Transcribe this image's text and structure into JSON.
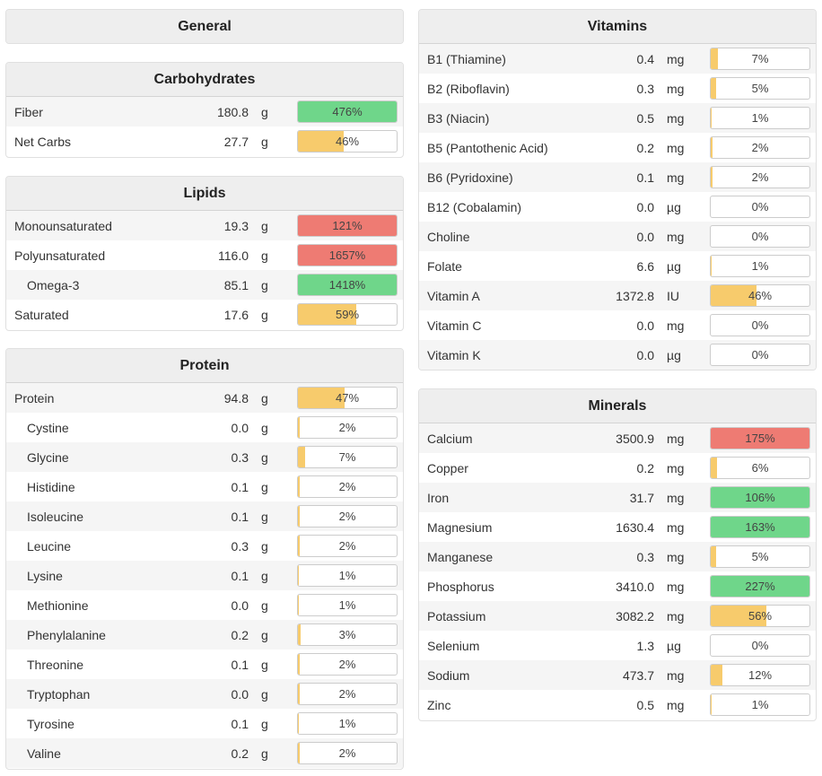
{
  "general": {
    "title": "General"
  },
  "carbohydrates": {
    "title": "Carbohydrates",
    "rows": [
      {
        "name": "Fiber",
        "amount": "180.8",
        "unit": "g",
        "percent": "476%",
        "fill": 100,
        "color": "green"
      },
      {
        "name": "Net Carbs",
        "amount": "27.7",
        "unit": "g",
        "percent": "46%",
        "fill": 46,
        "color": "yellow"
      }
    ]
  },
  "lipids": {
    "title": "Lipids",
    "rows": [
      {
        "name": "Monounsaturated",
        "amount": "19.3",
        "unit": "g",
        "percent": "121%",
        "fill": 100,
        "color": "red"
      },
      {
        "name": "Polyunsaturated",
        "amount": "116.0",
        "unit": "g",
        "percent": "1657%",
        "fill": 100,
        "color": "red"
      },
      {
        "name": "Omega-3",
        "amount": "85.1",
        "unit": "g",
        "percent": "1418%",
        "fill": 100,
        "color": "green",
        "sub": true
      },
      {
        "name": "Saturated",
        "amount": "17.6",
        "unit": "g",
        "percent": "59%",
        "fill": 59,
        "color": "yellow"
      }
    ]
  },
  "protein": {
    "title": "Protein",
    "rows": [
      {
        "name": "Protein",
        "amount": "94.8",
        "unit": "g",
        "percent": "47%",
        "fill": 47,
        "color": "yellow"
      },
      {
        "name": "Cystine",
        "amount": "0.0",
        "unit": "g",
        "percent": "2%",
        "fill": 2,
        "color": "yellow",
        "sub": true
      },
      {
        "name": "Glycine",
        "amount": "0.3",
        "unit": "g",
        "percent": "7%",
        "fill": 7,
        "color": "yellow",
        "sub": true
      },
      {
        "name": "Histidine",
        "amount": "0.1",
        "unit": "g",
        "percent": "2%",
        "fill": 2,
        "color": "yellow",
        "sub": true
      },
      {
        "name": "Isoleucine",
        "amount": "0.1",
        "unit": "g",
        "percent": "2%",
        "fill": 2,
        "color": "yellow",
        "sub": true
      },
      {
        "name": "Leucine",
        "amount": "0.3",
        "unit": "g",
        "percent": "2%",
        "fill": 2,
        "color": "yellow",
        "sub": true
      },
      {
        "name": "Lysine",
        "amount": "0.1",
        "unit": "g",
        "percent": "1%",
        "fill": 1,
        "color": "yellow",
        "sub": true
      },
      {
        "name": "Methionine",
        "amount": "0.0",
        "unit": "g",
        "percent": "1%",
        "fill": 1,
        "color": "yellow",
        "sub": true
      },
      {
        "name": "Phenylalanine",
        "amount": "0.2",
        "unit": "g",
        "percent": "3%",
        "fill": 3,
        "color": "yellow",
        "sub": true
      },
      {
        "name": "Threonine",
        "amount": "0.1",
        "unit": "g",
        "percent": "2%",
        "fill": 2,
        "color": "yellow",
        "sub": true
      },
      {
        "name": "Tryptophan",
        "amount": "0.0",
        "unit": "g",
        "percent": "2%",
        "fill": 2,
        "color": "yellow",
        "sub": true
      },
      {
        "name": "Tyrosine",
        "amount": "0.1",
        "unit": "g",
        "percent": "1%",
        "fill": 1,
        "color": "yellow",
        "sub": true
      },
      {
        "name": "Valine",
        "amount": "0.2",
        "unit": "g",
        "percent": "2%",
        "fill": 2,
        "color": "yellow",
        "sub": true
      }
    ]
  },
  "vitamins": {
    "title": "Vitamins",
    "rows": [
      {
        "name": "B1 (Thiamine)",
        "amount": "0.4",
        "unit": "mg",
        "percent": "7%",
        "fill": 7,
        "color": "yellow"
      },
      {
        "name": "B2 (Riboflavin)",
        "amount": "0.3",
        "unit": "mg",
        "percent": "5%",
        "fill": 5,
        "color": "yellow"
      },
      {
        "name": "B3 (Niacin)",
        "amount": "0.5",
        "unit": "mg",
        "percent": "1%",
        "fill": 1,
        "color": "yellow"
      },
      {
        "name": "B5 (Pantothenic Acid)",
        "amount": "0.2",
        "unit": "mg",
        "percent": "2%",
        "fill": 2,
        "color": "yellow"
      },
      {
        "name": "B6 (Pyridoxine)",
        "amount": "0.1",
        "unit": "mg",
        "percent": "2%",
        "fill": 2,
        "color": "yellow"
      },
      {
        "name": "B12 (Cobalamin)",
        "amount": "0.0",
        "unit": "µg",
        "percent": "0%",
        "fill": 0,
        "color": "yellow"
      },
      {
        "name": "Choline",
        "amount": "0.0",
        "unit": "mg",
        "percent": "0%",
        "fill": 0,
        "color": "yellow"
      },
      {
        "name": "Folate",
        "amount": "6.6",
        "unit": "µg",
        "percent": "1%",
        "fill": 1,
        "color": "yellow"
      },
      {
        "name": "Vitamin A",
        "amount": "1372.8",
        "unit": "IU",
        "percent": "46%",
        "fill": 46,
        "color": "yellow"
      },
      {
        "name": "Vitamin C",
        "amount": "0.0",
        "unit": "mg",
        "percent": "0%",
        "fill": 0,
        "color": "yellow"
      },
      {
        "name": "Vitamin K",
        "amount": "0.0",
        "unit": "µg",
        "percent": "0%",
        "fill": 0,
        "color": "yellow"
      }
    ]
  },
  "minerals": {
    "title": "Minerals",
    "rows": [
      {
        "name": "Calcium",
        "amount": "3500.9",
        "unit": "mg",
        "percent": "175%",
        "fill": 100,
        "color": "red"
      },
      {
        "name": "Copper",
        "amount": "0.2",
        "unit": "mg",
        "percent": "6%",
        "fill": 6,
        "color": "yellow"
      },
      {
        "name": "Iron",
        "amount": "31.7",
        "unit": "mg",
        "percent": "106%",
        "fill": 100,
        "color": "green"
      },
      {
        "name": "Magnesium",
        "amount": "1630.4",
        "unit": "mg",
        "percent": "163%",
        "fill": 100,
        "color": "green"
      },
      {
        "name": "Manganese",
        "amount": "0.3",
        "unit": "mg",
        "percent": "5%",
        "fill": 5,
        "color": "yellow"
      },
      {
        "name": "Phosphorus",
        "amount": "3410.0",
        "unit": "mg",
        "percent": "227%",
        "fill": 100,
        "color": "green"
      },
      {
        "name": "Potassium",
        "amount": "3082.2",
        "unit": "mg",
        "percent": "56%",
        "fill": 56,
        "color": "yellow"
      },
      {
        "name": "Selenium",
        "amount": "1.3",
        "unit": "µg",
        "percent": "0%",
        "fill": 0,
        "color": "yellow"
      },
      {
        "name": "Sodium",
        "amount": "473.7",
        "unit": "mg",
        "percent": "12%",
        "fill": 12,
        "color": "yellow"
      },
      {
        "name": "Zinc",
        "amount": "0.5",
        "unit": "mg",
        "percent": "1%",
        "fill": 1,
        "color": "yellow"
      }
    ]
  },
  "colors": {
    "green": "#6fd68a",
    "yellow": "#f7cb6c",
    "red": "#ee7b73",
    "header_bg": "#eeeeee"
  }
}
